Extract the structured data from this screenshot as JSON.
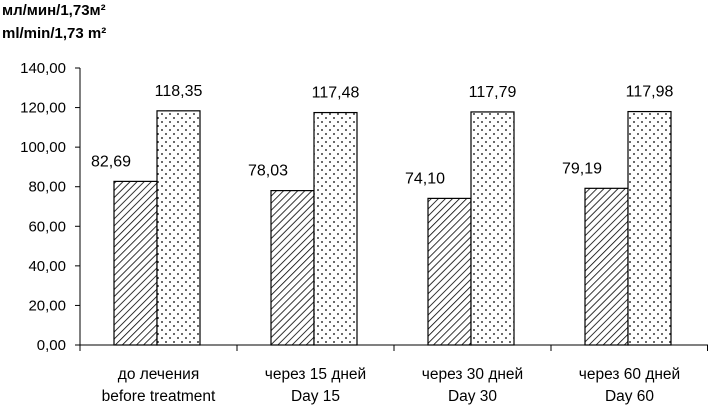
{
  "chart_data": {
    "type": "bar",
    "ylabel_lines": [
      "мл/мин/1,73м²",
      "ml/min/1,73 m²"
    ],
    "categories": [
      [
        "до лечения",
        "before treatment"
      ],
      [
        "через 15 дней",
        "Day 15"
      ],
      [
        "через 30 дней",
        "Day 30"
      ],
      [
        "через 60 дней",
        "Day 60"
      ]
    ],
    "yticks": [
      "0,00",
      "20,00",
      "40,00",
      "60,00",
      "80,00",
      "100,00",
      "120,00",
      "140,00"
    ],
    "ylim": [
      0,
      140
    ],
    "series": [
      {
        "pattern": "diagonal-hatch",
        "values": [
          82.69,
          78.03,
          74.1,
          79.19
        ],
        "labels": [
          "82,69",
          "78,03",
          "74,10",
          "79,19"
        ]
      },
      {
        "pattern": "dots",
        "values": [
          118.35,
          117.48,
          117.79,
          117.98
        ],
        "labels": [
          "118,35",
          "117,48",
          "117,79",
          "117,98"
        ]
      }
    ],
    "grid": false,
    "legend": "none"
  }
}
